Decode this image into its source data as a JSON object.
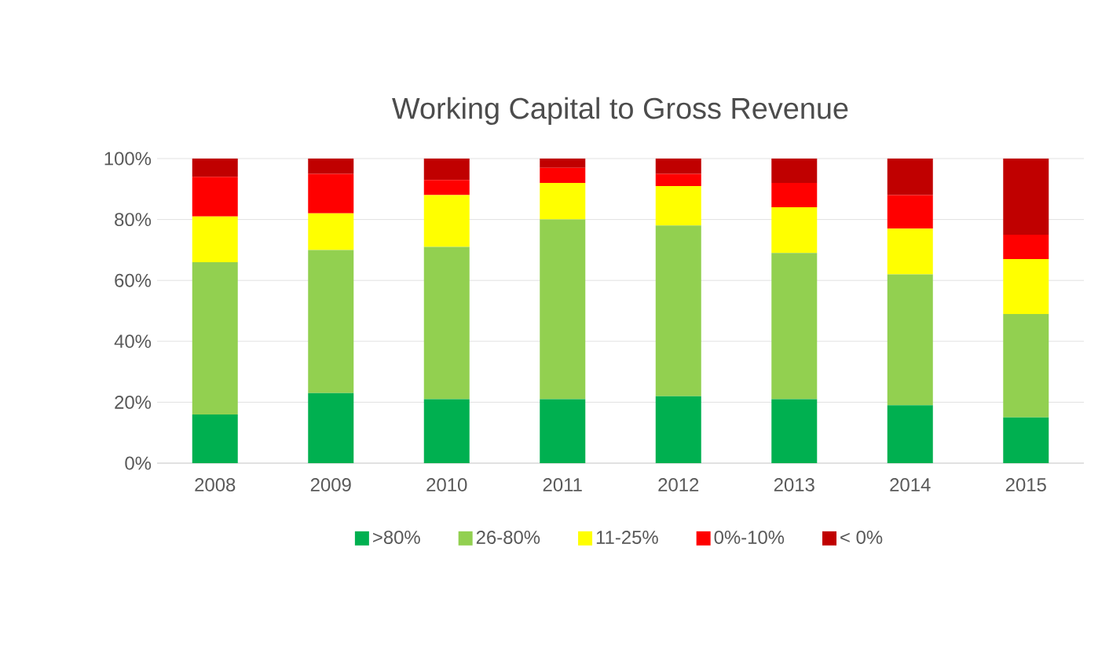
{
  "chart_data": {
    "type": "bar",
    "title": "Working Capital to Gross Revenue",
    "stacked": true,
    "categories": [
      "2008",
      "2009",
      "2010",
      "2011",
      "2012",
      "2013",
      "2014",
      "2015"
    ],
    "series": [
      {
        "name": ">80%",
        "color": "#00b050",
        "values": [
          16,
          23,
          21,
          21,
          22,
          21,
          19,
          15
        ]
      },
      {
        "name": "26-80%",
        "color": "#92d050",
        "values": [
          50,
          47,
          50,
          59,
          56,
          48,
          43,
          34
        ]
      },
      {
        "name": "11-25%",
        "color": "#ffff00",
        "values": [
          15,
          12,
          17,
          12,
          13,
          15,
          15,
          18
        ]
      },
      {
        "name": "0%-10%",
        "color": "#ff0000",
        "values": [
          13,
          13,
          5,
          5,
          4,
          8,
          11,
          8
        ]
      },
      {
        "name": "< 0%",
        "color": "#c00000",
        "values": [
          6,
          5,
          7,
          3,
          5,
          8,
          12,
          25
        ]
      }
    ],
    "ylim": [
      0,
      100
    ],
    "yticks": [
      {
        "value": 0,
        "label": "0%"
      },
      {
        "value": 20,
        "label": "20%"
      },
      {
        "value": 40,
        "label": "40%"
      },
      {
        "value": 60,
        "label": "60%"
      },
      {
        "value": 80,
        "label": "80%"
      },
      {
        "value": 100,
        "label": "100%"
      }
    ],
    "grid": "y",
    "legend": "bottom"
  }
}
